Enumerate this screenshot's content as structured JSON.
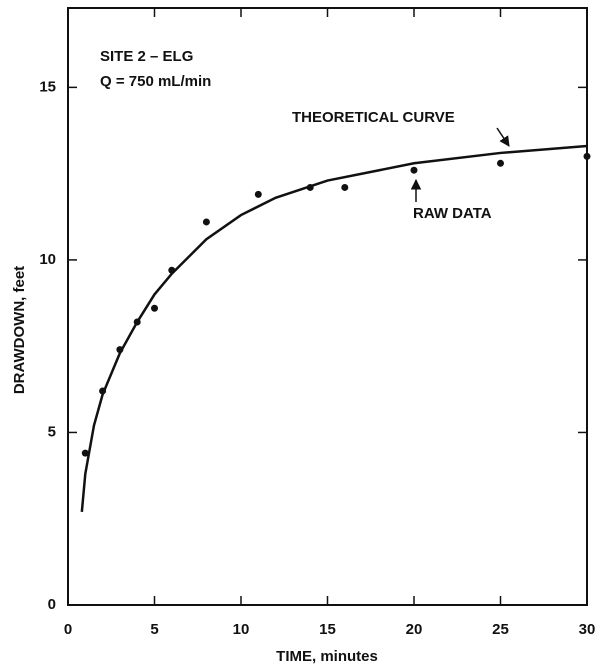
{
  "chart_data": {
    "type": "scatter",
    "x_label": "TIME, minutes",
    "y_label": "DRAWDOWN, feet",
    "annotations": [
      "SITE 2 – ELG",
      "Q = 750 mL/min",
      "THEORETICAL CURVE",
      "RAW DATA"
    ],
    "xlim": [
      0,
      30
    ],
    "ylim": [
      0,
      17.3
    ],
    "xticks": [
      0,
      5,
      10,
      15,
      20,
      25,
      30
    ],
    "yticks": [
      0,
      5,
      10,
      15
    ],
    "series": [
      {
        "type": "line",
        "color": "#111111",
        "x": [
          0.8,
          1,
          1.5,
          2,
          3,
          4,
          5,
          6,
          8,
          10,
          12,
          15,
          20,
          25,
          30
        ],
        "values": [
          2.7,
          3.8,
          5.2,
          6.1,
          7.3,
          8.2,
          9.0,
          9.6,
          10.6,
          11.3,
          11.8,
          12.3,
          12.8,
          13.1,
          13.3
        ]
      },
      {
        "type": "scatter",
        "color": "#111111",
        "x": [
          1,
          2,
          3,
          4,
          5,
          6,
          8,
          11,
          14,
          16,
          20,
          25,
          30
        ],
        "values": [
          4.4,
          6.2,
          7.4,
          8.2,
          8.6,
          9.7,
          11.1,
          11.9,
          12.1,
          12.1,
          12.6,
          12.8,
          13.0
        ]
      }
    ]
  }
}
